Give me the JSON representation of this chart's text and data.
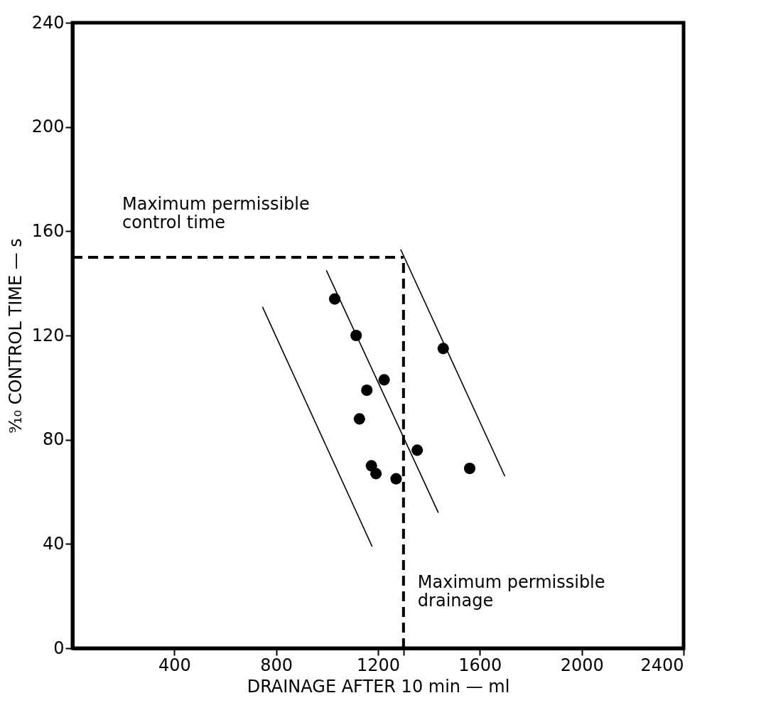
{
  "chart_data": {
    "type": "scatter",
    "xlabel": "DRAINAGE  AFTER  10 min — ml",
    "ylabel": "⁹⁄₁₀ CONTROL TIME — s",
    "xlim": [
      0,
      2400
    ],
    "ylim": [
      0,
      240
    ],
    "xticks": [
      400,
      800,
      1200,
      {
        "value": 1300,
        "label": null
      },
      1600,
      2000,
      2400
    ],
    "yticks": [
      0,
      40,
      80,
      120,
      160,
      200,
      240
    ],
    "grid": false,
    "marker": "circle",
    "series": [
      {
        "color": "#000000",
        "x": [
          1030,
          1114,
          1456,
          1224,
          1156,
          1127,
          1354,
          1174,
          1192,
          1271,
          1560
        ],
        "values": [
          134,
          120,
          115,
          103,
          99,
          88,
          76,
          70,
          67,
          65,
          69
        ]
      },
      {
        "type": "line",
        "marker": "none",
        "color": "#000000",
        "x": [
          746,
          1177
        ],
        "values": [
          131,
          39
        ]
      },
      {
        "type": "line",
        "marker": "none",
        "color": "#000000",
        "x": [
          997,
          1437
        ],
        "values": [
          145,
          52
        ]
      },
      {
        "type": "line",
        "marker": "none",
        "color": "#000000",
        "x": [
          1289,
          1698
        ],
        "values": [
          153,
          66
        ]
      }
    ],
    "ref_lines": [
      {
        "axis": "y",
        "value": 150,
        "label": "Maximum permissible control time",
        "line_style": "dashed"
      },
      {
        "axis": "x",
        "value": 1300,
        "label": "Maximum permissible drainage",
        "line_style": "dashed"
      }
    ]
  }
}
